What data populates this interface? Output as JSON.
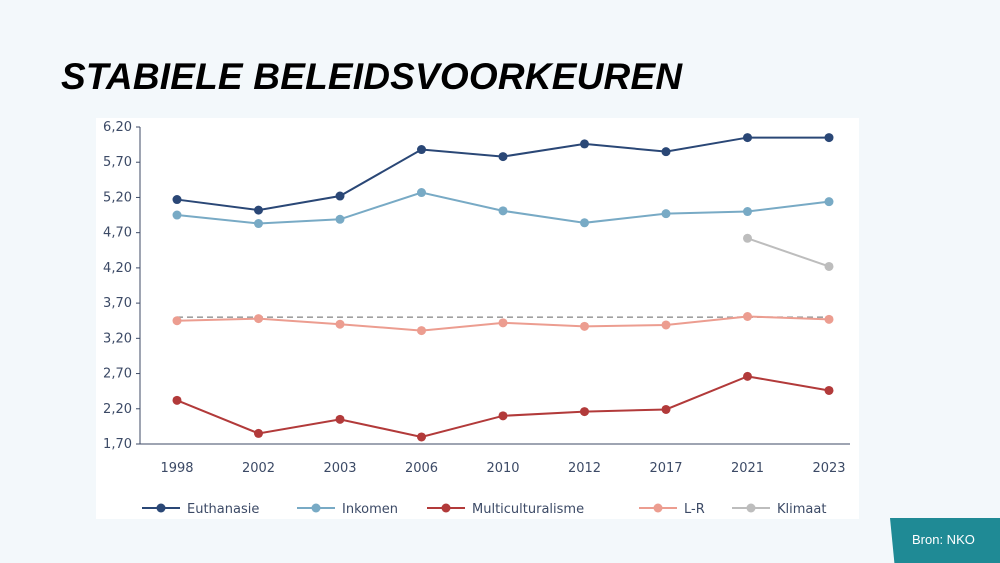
{
  "slide": {
    "title": "STABIELE BELEIDSVOORKEUREN",
    "source": "Bron: NKO"
  },
  "colors": {
    "euthanasie": "#2a4776",
    "inkomen": "#78aac5",
    "multiculturalisme": "#b23a3a",
    "lr": "#ec9d90",
    "klimaat": "#bdbdbd",
    "reference": "#a0a0a0",
    "axis": "#3c4a66"
  },
  "chart_data": {
    "type": "line",
    "x": [
      "1998",
      "2002",
      "2003",
      "2006",
      "2010",
      "2012",
      "2017",
      "2021",
      "2023"
    ],
    "y_ticks": [
      "6,20",
      "5,70",
      "5,20",
      "4,70",
      "4,20",
      "3,70",
      "3,20",
      "2,70",
      "2,20",
      "1,70"
    ],
    "ylim": [
      1.7,
      6.2
    ],
    "grid": false,
    "legend_position": "bottom",
    "reference_line": 3.5,
    "series": [
      {
        "name": "Euthanasie",
        "color_key": "euthanasie",
        "values": [
          5.17,
          5.02,
          5.22,
          5.88,
          5.78,
          5.96,
          5.85,
          6.05,
          6.05
        ]
      },
      {
        "name": "Inkomen",
        "color_key": "inkomen",
        "values": [
          4.95,
          4.83,
          4.89,
          5.27,
          5.01,
          4.84,
          4.97,
          5.0,
          5.14
        ]
      },
      {
        "name": "Multiculturalisme",
        "color_key": "multiculturalisme",
        "values": [
          2.32,
          1.85,
          2.05,
          1.8,
          2.1,
          2.16,
          2.19,
          2.66,
          2.46
        ]
      },
      {
        "name": "L-R",
        "color_key": "lr",
        "values": [
          3.45,
          3.48,
          3.4,
          3.31,
          3.42,
          3.37,
          3.39,
          3.51,
          3.47
        ]
      },
      {
        "name": "Klimaat",
        "color_key": "klimaat",
        "values": [
          null,
          null,
          null,
          null,
          null,
          null,
          null,
          4.62,
          4.22
        ]
      }
    ]
  }
}
